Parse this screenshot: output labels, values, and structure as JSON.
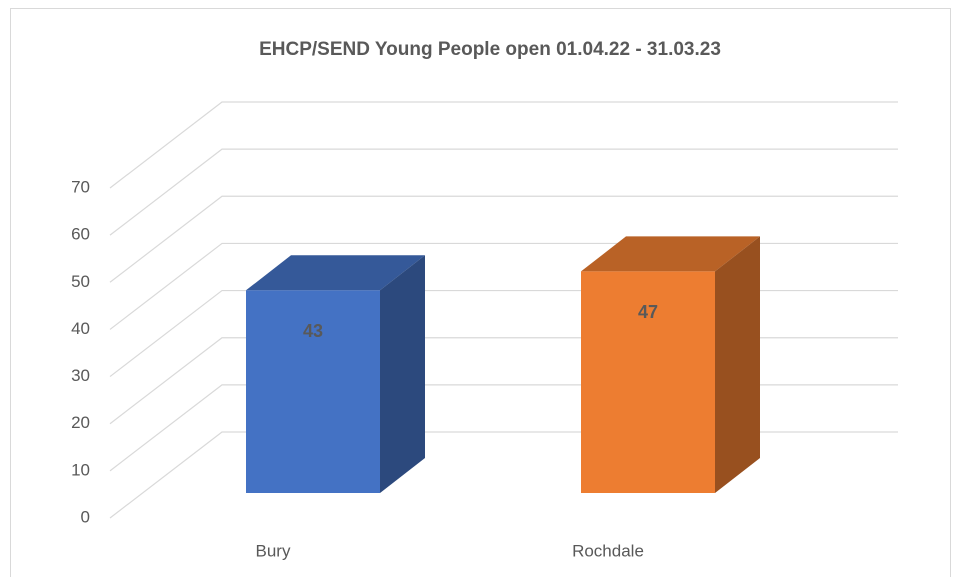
{
  "chart_data": {
    "type": "bar3d",
    "title": "EHCP/SEND Young People open 01.04.22 - 31.03.23",
    "categories": [
      "Bury",
      "Rochdale"
    ],
    "values": [
      43,
      47
    ],
    "colors": [
      "#4472c4",
      "#ed7d31"
    ],
    "ylim": [
      0,
      70
    ],
    "yticks": [
      0,
      10,
      20,
      30,
      40,
      50,
      60,
      70
    ],
    "grid": true
  }
}
